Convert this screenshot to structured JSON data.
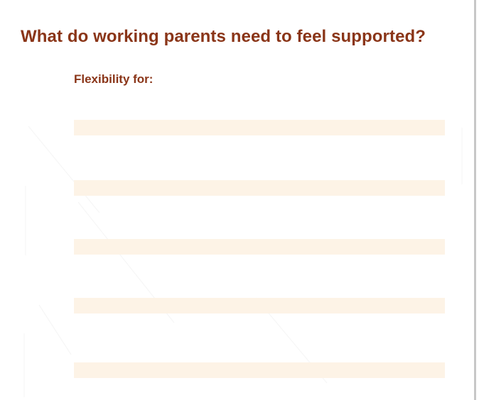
{
  "worksheet": {
    "title": "What do working parents need to feel supported?",
    "prompt": "Flexibility for:",
    "answer_lines": [
      {
        "value": ""
      },
      {
        "value": ""
      },
      {
        "value": ""
      },
      {
        "value": ""
      },
      {
        "value": ""
      }
    ]
  },
  "colors": {
    "heading": "#8a3518",
    "line_fill": "#fdf3e6",
    "background": "#ffffff"
  }
}
